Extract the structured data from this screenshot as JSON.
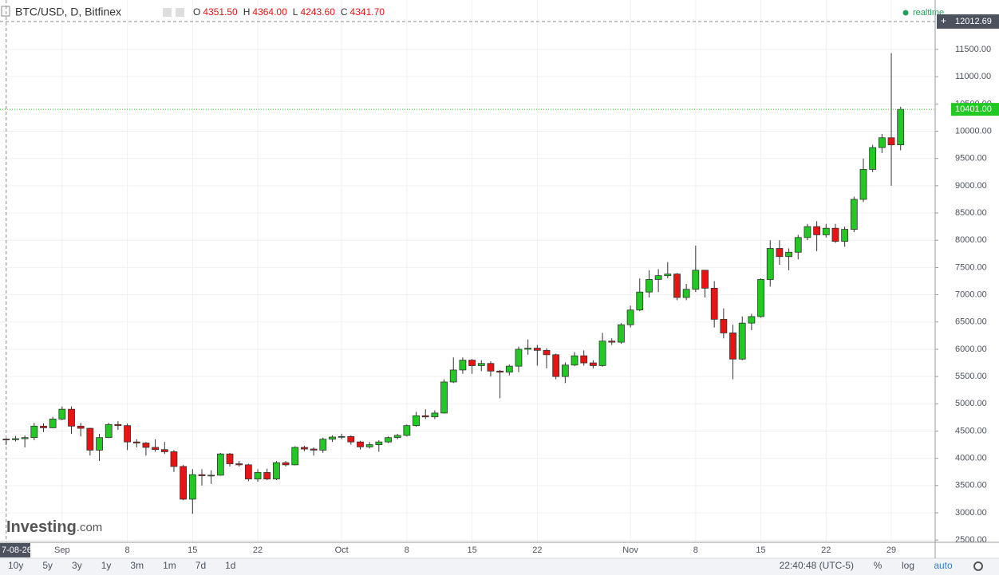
{
  "chart_data": {
    "type": "candlestick",
    "title": "BTC/USD, D, Bitfinex",
    "ohlc_labels": [
      {
        "key": "O",
        "value": "4351.50"
      },
      {
        "key": "H",
        "value": "4364.00"
      },
      {
        "key": "L",
        "value": "4243.60"
      },
      {
        "key": "C",
        "value": "4341.70"
      }
    ],
    "status": "realtime",
    "x": [
      "2017-08-26",
      "2017-08-27",
      "2017-08-28",
      "2017-08-29",
      "2017-08-30",
      "2017-08-31",
      "2017-09-01",
      "2017-09-02",
      "2017-09-03",
      "2017-09-04",
      "2017-09-05",
      "2017-09-06",
      "2017-09-07",
      "2017-09-08",
      "2017-09-09",
      "2017-09-10",
      "2017-09-11",
      "2017-09-12",
      "2017-09-13",
      "2017-09-14",
      "2017-09-15",
      "2017-09-16",
      "2017-09-17",
      "2017-09-18",
      "2017-09-19",
      "2017-09-20",
      "2017-09-21",
      "2017-09-22",
      "2017-09-23",
      "2017-09-24",
      "2017-09-25",
      "2017-09-26",
      "2017-09-27",
      "2017-09-28",
      "2017-09-29",
      "2017-09-30",
      "2017-10-01",
      "2017-10-02",
      "2017-10-03",
      "2017-10-04",
      "2017-10-05",
      "2017-10-06",
      "2017-10-07",
      "2017-10-08",
      "2017-10-09",
      "2017-10-10",
      "2017-10-11",
      "2017-10-12",
      "2017-10-13",
      "2017-10-14",
      "2017-10-15",
      "2017-10-16",
      "2017-10-17",
      "2017-10-18",
      "2017-10-19",
      "2017-10-20",
      "2017-10-21",
      "2017-10-22",
      "2017-10-23",
      "2017-10-24",
      "2017-10-25",
      "2017-10-26",
      "2017-10-27",
      "2017-10-28",
      "2017-10-29",
      "2017-10-30",
      "2017-10-31",
      "2017-11-01",
      "2017-11-02",
      "2017-11-03",
      "2017-11-04",
      "2017-11-05",
      "2017-11-06",
      "2017-11-07",
      "2017-11-08",
      "2017-11-09",
      "2017-11-10",
      "2017-11-11",
      "2017-11-12",
      "2017-11-13",
      "2017-11-14",
      "2017-11-15",
      "2017-11-16",
      "2017-11-17",
      "2017-11-18",
      "2017-11-19",
      "2017-11-20",
      "2017-11-21",
      "2017-11-22",
      "2017-11-23",
      "2017-11-24",
      "2017-11-25",
      "2017-11-26",
      "2017-11-27",
      "2017-11-28",
      "2017-11-29",
      "2017-11-30"
    ],
    "open": [
      4351.5,
      4341.7,
      4360,
      4380,
      4590,
      4560,
      4720,
      4900,
      4590,
      4550,
      4150,
      4380,
      4620,
      4600,
      4300,
      4280,
      4200,
      4160,
      4120,
      3850,
      3250,
      3700,
      3680,
      3690,
      4080,
      3900,
      3880,
      3620,
      3740,
      3620,
      3920,
      3880,
      4200,
      4170,
      4150,
      4350,
      4390,
      4400,
      4300,
      4210,
      4250,
      4300,
      4380,
      4420,
      4600,
      4780,
      4760,
      4830,
      5400,
      5620,
      5800,
      5700,
      5740,
      5600,
      5580,
      5690,
      6000,
      6020,
      5980,
      5900,
      5500,
      5710,
      5880,
      5750,
      5700,
      6150,
      6130,
      6450,
      6720,
      7050,
      7280,
      7350,
      7380,
      6950,
      7100,
      7450,
      7120,
      6550,
      6300,
      5820,
      6480,
      6600,
      7280,
      7850,
      7700,
      7780,
      8050,
      8250,
      8100,
      8220,
      7980,
      8200,
      8750,
      9300,
      9700,
      9880,
      9750
    ],
    "high": [
      4364,
      4410,
      4420,
      4650,
      4640,
      4760,
      4950,
      4950,
      4650,
      4560,
      4450,
      4650,
      4680,
      4640,
      4350,
      4300,
      4350,
      4300,
      4150,
      3880,
      3800,
      3800,
      3780,
      4100,
      4100,
      3950,
      3900,
      3800,
      3810,
      3950,
      3950,
      4220,
      4230,
      4200,
      4380,
      4420,
      4450,
      4420,
      4320,
      4300,
      4330,
      4400,
      4450,
      4620,
      4850,
      4900,
      4880,
      5450,
      5850,
      5850,
      5820,
      5800,
      5780,
      5620,
      5720,
      6050,
      6180,
      6080,
      6020,
      5920,
      5760,
      5950,
      5980,
      5800,
      6300,
      6200,
      6480,
      6800,
      7300,
      7450,
      7470,
      7600,
      7400,
      7200,
      7900,
      7450,
      7250,
      6750,
      6450,
      6600,
      6650,
      7300,
      8000,
      8000,
      7850,
      8100,
      8300,
      8350,
      8300,
      8300,
      8250,
      8800,
      9500,
      9750,
      9950,
      11430,
      10450
    ],
    "low": [
      4243.6,
      4310,
      4200,
      4330,
      4480,
      4550,
      4700,
      4450,
      4400,
      4050,
      3950,
      4370,
      4520,
      4150,
      4200,
      4050,
      4120,
      4080,
      3750,
      3230,
      2980,
      3500,
      3530,
      3680,
      3850,
      3850,
      3580,
      3570,
      3600,
      3600,
      3850,
      3870,
      4130,
      4050,
      4100,
      4300,
      4350,
      4250,
      4160,
      4180,
      4120,
      4280,
      4350,
      4400,
      4580,
      4720,
      4720,
      4820,
      5380,
      5550,
      5550,
      5600,
      5500,
      5100,
      5520,
      5580,
      5900,
      5700,
      5650,
      5450,
      5380,
      5690,
      5700,
      5650,
      5680,
      6080,
      6100,
      6400,
      6700,
      6950,
      7050,
      7300,
      6900,
      6900,
      7050,
      6950,
      6400,
      6200,
      5450,
      5800,
      6350,
      6580,
      7150,
      7550,
      7450,
      7650,
      8000,
      7800,
      8050,
      7950,
      7880,
      8150,
      8700,
      9250,
      9600,
      9000,
      9650
    ],
    "close": [
      4341.7,
      4360,
      4380,
      4590,
      4560,
      4720,
      4900,
      4590,
      4550,
      4150,
      4380,
      4620,
      4600,
      4300,
      4280,
      4200,
      4160,
      4120,
      3850,
      3250,
      3700,
      3680,
      3690,
      4080,
      3900,
      3880,
      3620,
      3740,
      3620,
      3920,
      3880,
      4200,
      4170,
      4150,
      4350,
      4390,
      4400,
      4300,
      4210,
      4250,
      4300,
      4380,
      4420,
      4600,
      4780,
      4760,
      4830,
      5400,
      5620,
      5800,
      5700,
      5740,
      5600,
      5580,
      5690,
      6000,
      6020,
      5980,
      5900,
      5500,
      5710,
      5880,
      5750,
      5700,
      6150,
      6130,
      6450,
      6720,
      7050,
      7280,
      7350,
      7380,
      6950,
      7100,
      7450,
      7120,
      6550,
      6300,
      5820,
      6480,
      6600,
      7280,
      7850,
      7700,
      7780,
      8050,
      8250,
      8100,
      8220,
      7980,
      8200,
      8750,
      9300,
      9700,
      9880,
      9750,
      10401
    ],
    "up_color": "#22c922",
    "down_color": "#e81414",
    "ylim": [
      2459,
      12407
    ],
    "yticks": [
      {
        "value": 2500,
        "label": "2500.00"
      },
      {
        "value": 3000,
        "label": "3000.00"
      },
      {
        "value": 3500,
        "label": "3500.00"
      },
      {
        "value": 4000,
        "label": "4000.00"
      },
      {
        "value": 4500,
        "label": "4500.00"
      },
      {
        "value": 5000,
        "label": "5000.00"
      },
      {
        "value": 5500,
        "label": "5500.00"
      },
      {
        "value": 6000,
        "label": "6000.00"
      },
      {
        "value": 6500,
        "label": "6500.00"
      },
      {
        "value": 7000,
        "label": "7000.00"
      },
      {
        "value": 7500,
        "label": "7500.00"
      },
      {
        "value": 8000,
        "label": "8000.00"
      },
      {
        "value": 8500,
        "label": "8500.00"
      },
      {
        "value": 9000,
        "label": "9000.00"
      },
      {
        "value": 9500,
        "label": "9500.00"
      },
      {
        "value": 10000,
        "label": "10000.00"
      },
      {
        "value": 10500,
        "label": "10500.00"
      },
      {
        "value": 11000,
        "label": "11000.00"
      },
      {
        "value": 11500,
        "label": "11500.00"
      }
    ],
    "xlim": [
      "2017-08-25T08:00:00Z",
      "2017-12-03T17:00:00Z"
    ],
    "xticks": [
      {
        "value": "2017-09-01",
        "label": "Sep"
      },
      {
        "value": "2017-09-08",
        "label": "8"
      },
      {
        "value": "2017-09-15",
        "label": "15"
      },
      {
        "value": "2017-09-22",
        "label": "22"
      },
      {
        "value": "2017-10-01",
        "label": "Oct"
      },
      {
        "value": "2017-10-08",
        "label": "8"
      },
      {
        "value": "2017-10-15",
        "label": "15"
      },
      {
        "value": "2017-10-22",
        "label": "22"
      },
      {
        "value": "2017-11-01",
        "label": "Nov"
      },
      {
        "value": "2017-11-08",
        "label": "8"
      },
      {
        "value": "2017-11-15",
        "label": "15"
      },
      {
        "value": "2017-11-22",
        "label": "22"
      },
      {
        "value": "2017-11-29",
        "label": "29"
      }
    ],
    "grid": true,
    "crosshair": {
      "x": "2017-08-26",
      "x_label": "7-08-26",
      "y": 12012.69,
      "y_label": "12012.69"
    },
    "last_price": {
      "value": 10401,
      "label": "10401.00",
      "color": "#22c922"
    },
    "logo": {
      "brand": "Investing",
      "suffix": ".com"
    },
    "toolbar": {
      "ranges": [
        "10y",
        "5y",
        "3y",
        "1y",
        "3m",
        "1m",
        "7d",
        "1d"
      ],
      "time": "22:40:48 (UTC-5)",
      "options": [
        "%",
        "log",
        "auto"
      ]
    }
  }
}
